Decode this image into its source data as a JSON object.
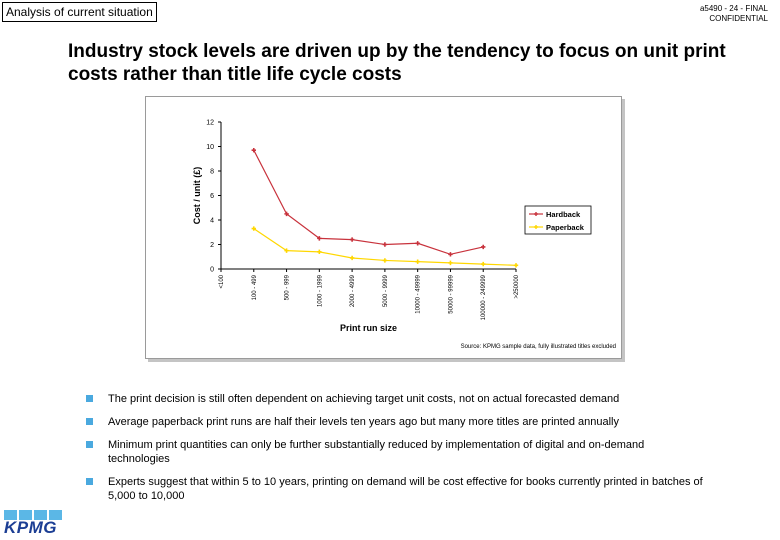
{
  "header": {
    "section_tag": "Analysis of current situation",
    "doc_ref_line1": "a5490 - 24 - FINAL",
    "doc_ref_line2": "CONFIDENTIAL"
  },
  "headline": "Industry stock levels are driven up by the tendency to focus on unit print costs rather than title life cycle costs",
  "chart_data": {
    "type": "line",
    "xlabel": "Print run size",
    "ylabel": "Cost / unit (£)",
    "ylim": [
      0,
      12
    ],
    "yticks": [
      0,
      2,
      4,
      6,
      8,
      10,
      12
    ],
    "grid": false,
    "legend_position": "right",
    "categories": [
      "<100",
      "100 - 499",
      "500 - 999",
      "1000 - 1999",
      "2000 - 4999",
      "5000 - 9999",
      "10000 - 49999",
      "50000 - 99999",
      "100000 - 249999",
      ">250000"
    ],
    "series": [
      {
        "name": "Hardback",
        "color": "#c8323c",
        "values": [
          null,
          9.7,
          4.5,
          2.5,
          2.4,
          2.0,
          2.1,
          1.2,
          1.8,
          null
        ]
      },
      {
        "name": "Paperback",
        "color": "#ffd700",
        "values": [
          null,
          3.3,
          1.5,
          1.4,
          0.9,
          0.7,
          0.6,
          0.5,
          0.4,
          0.3
        ]
      }
    ],
    "source": "Source: KPMG sample data, fully illustrated titles excluded"
  },
  "bullets": [
    "The print decision is still often dependent on achieving target unit costs, not on actual forecasted demand",
    "Average paperback print runs are half their levels ten years ago but many more titles are printed annually",
    "Minimum print quantities can only be further substantially reduced by implementation of digital and on-demand technologies",
    "Experts suggest that within 5 to 10 years, printing on demand will be cost effective for books currently printed in batches of 5,000 to 10,000"
  ],
  "logo": {
    "text": "KPMG"
  }
}
